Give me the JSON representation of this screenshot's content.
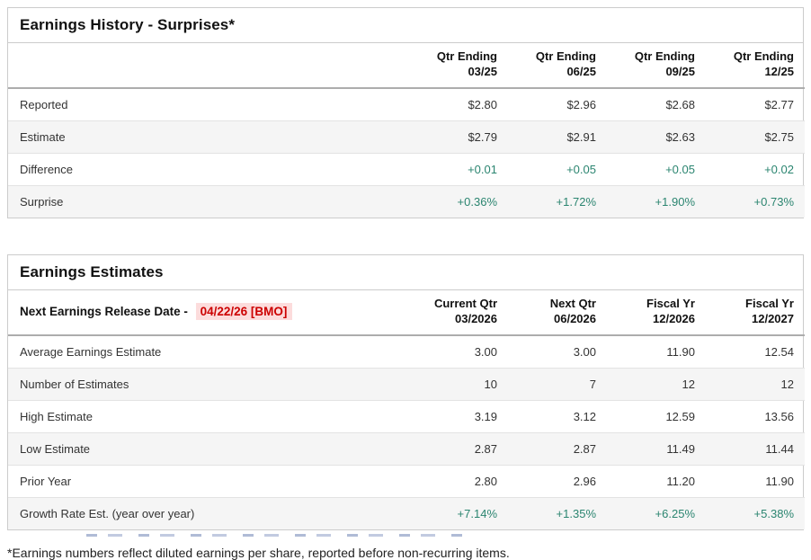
{
  "colors": {
    "positive_green": "#2b8570",
    "alert_red": "#cc0000",
    "alert_red_bg": "#fcdcdc",
    "alt_row_bg": "#f5f5f5",
    "table_border": "#cccccc"
  },
  "earnings_history": {
    "title": "Earnings History - Surprises*",
    "columns": [
      {
        "line1": "Qtr Ending",
        "line2": "03/25"
      },
      {
        "line1": "Qtr Ending",
        "line2": "06/25"
      },
      {
        "line1": "Qtr Ending",
        "line2": "09/25"
      },
      {
        "line1": "Qtr Ending",
        "line2": "12/25"
      }
    ],
    "rows": [
      {
        "label": "Reported",
        "values": [
          "$2.80",
          "$2.96",
          "$2.68",
          "$2.77"
        ],
        "color": "dark"
      },
      {
        "label": "Estimate",
        "values": [
          "$2.79",
          "$2.91",
          "$2.63",
          "$2.75"
        ],
        "color": "dark"
      },
      {
        "label": "Difference",
        "values": [
          "+0.01",
          "+0.05",
          "+0.05",
          "+0.02"
        ],
        "color": "green"
      },
      {
        "label": "Surprise",
        "values": [
          "+0.36%",
          "+1.72%",
          "+1.90%",
          "+0.73%"
        ],
        "color": "green"
      }
    ]
  },
  "earnings_estimates": {
    "title": "Earnings Estimates",
    "release_label": "Next Earnings Release Date - ",
    "release_date": "04/22/26 [BMO]",
    "columns": [
      {
        "line1": "Current Qtr",
        "line2": "03/2026"
      },
      {
        "line1": "Next Qtr",
        "line2": "06/2026"
      },
      {
        "line1": "Fiscal Yr",
        "line2": "12/2026"
      },
      {
        "line1": "Fiscal Yr",
        "line2": "12/2027"
      }
    ],
    "rows": [
      {
        "label": "Average Earnings Estimate",
        "values": [
          "3.00",
          "3.00",
          "11.90",
          "12.54"
        ],
        "color": "dark"
      },
      {
        "label": "Number of Estimates",
        "values": [
          "10",
          "7",
          "12",
          "12"
        ],
        "color": "dark"
      },
      {
        "label": "High Estimate",
        "values": [
          "3.19",
          "3.12",
          "12.59",
          "13.56"
        ],
        "color": "dark"
      },
      {
        "label": "Low Estimate",
        "values": [
          "2.87",
          "2.87",
          "11.49",
          "11.44"
        ],
        "color": "dark"
      },
      {
        "label": "Prior Year",
        "values": [
          "2.80",
          "2.96",
          "11.20",
          "11.90"
        ],
        "color": "dark"
      },
      {
        "label": "Growth Rate Est. (year over year)",
        "values": [
          "+7.14%",
          "+1.35%",
          "+6.25%",
          "+5.38%"
        ],
        "color": "green"
      }
    ]
  },
  "footnote": "*Earnings numbers reflect diluted earnings per share, reported before non-recurring items."
}
